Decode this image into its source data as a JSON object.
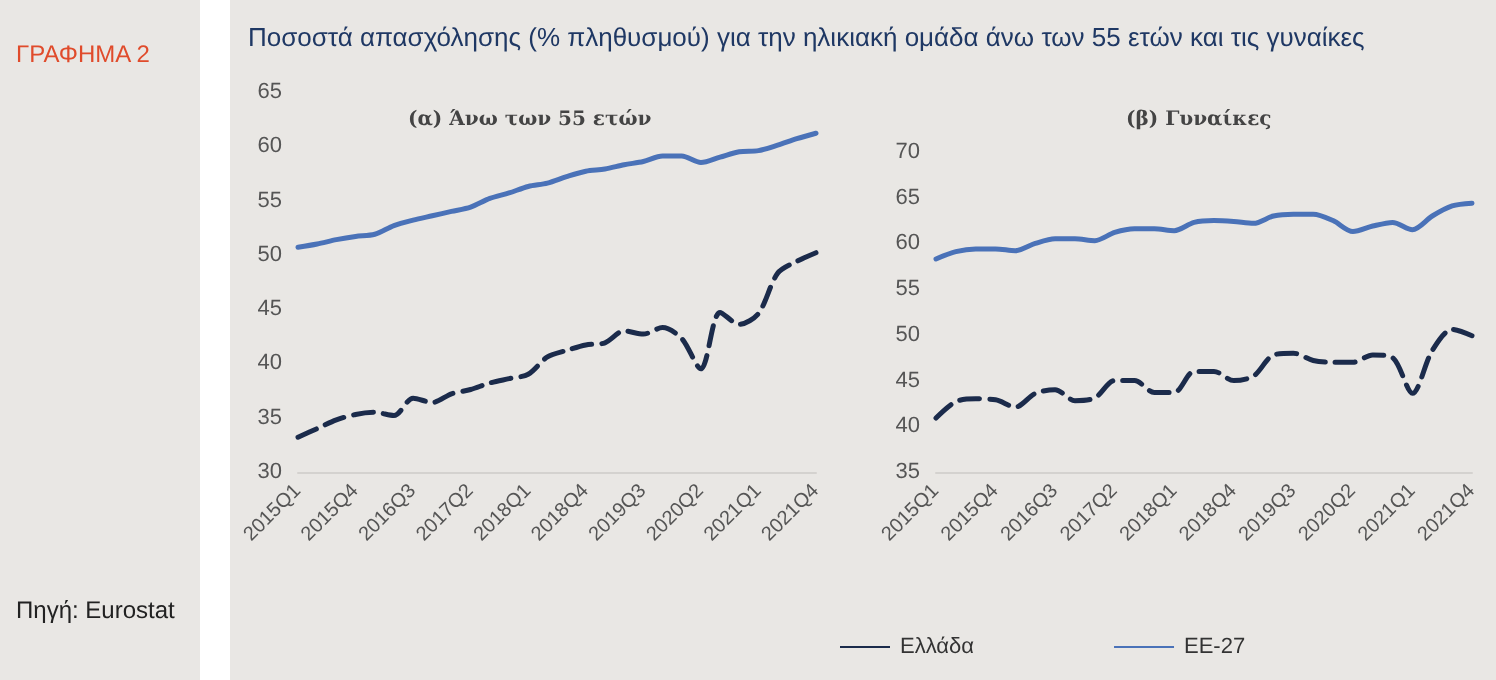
{
  "chart_data": [
    {
      "type": "line",
      "title": "(α) Άνω των 55 ετών",
      "annotations": [
        "Ποσοστά απασχόλησης (% πληθυσμού) για την ηλικιακή ομάδα άνω των 55 ετών και τις γυναίκες",
        "ΓΡΑΦΗΜΑ 2",
        "Πηγή: Eurostat"
      ],
      "categories": [
        "2015Q1",
        null,
        null,
        "2015Q4",
        null,
        null,
        "2016Q3",
        null,
        null,
        "2017Q2",
        null,
        null,
        "2018Q1",
        null,
        null,
        "2018Q4",
        null,
        null,
        "2019Q3",
        null,
        null,
        "2020Q2",
        null,
        null,
        "2021Q1",
        null,
        null,
        "2021Q4"
      ],
      "series": [
        {
          "color": "#1b2b4b",
          "line_style": "dashed",
          "values": [
            33.2,
            34.0,
            34.8,
            35.3,
            35.5,
            35.2,
            36.8,
            36.4,
            37.2,
            37.6,
            38.2,
            38.6,
            39.0,
            40.6,
            41.2,
            41.7,
            41.9,
            43.0,
            42.7,
            43.3,
            42.3,
            39.5,
            44.7,
            43.6,
            44.6,
            48.3,
            49.4,
            50.2
          ]
        },
        {
          "color": "#4a72b8",
          "line_style": "solid",
          "values": [
            50.7,
            51.0,
            51.4,
            51.7,
            51.9,
            52.7,
            53.2,
            53.6,
            54.0,
            54.4,
            55.2,
            55.7,
            56.3,
            56.6,
            57.2,
            57.7,
            57.9,
            58.3,
            58.6,
            59.1,
            59.1,
            58.5,
            59.0,
            59.5,
            59.6,
            60.1,
            60.7,
            61.2
          ]
        }
      ],
      "ylim": [
        30,
        65
      ],
      "yticks": [
        30,
        35,
        40,
        45,
        50,
        55,
        60,
        65
      ],
      "grid": false,
      "legend": false,
      "marker": "none"
    },
    {
      "type": "line",
      "title": "(β) Γυναίκες",
      "categories": [
        "2015Q1",
        null,
        null,
        "2015Q4",
        null,
        null,
        "2016Q3",
        null,
        null,
        "2017Q2",
        null,
        null,
        "2018Q1",
        null,
        null,
        "2018Q4",
        null,
        null,
        "2019Q3",
        null,
        null,
        "2020Q2",
        null,
        null,
        "2021Q1",
        null,
        null,
        "2021Q4"
      ],
      "series": [
        {
          "name": "Ελλάδα",
          "color": "#1b2b4b",
          "line_style": "dashed",
          "values": [
            40.9,
            42.7,
            43.0,
            42.9,
            42.1,
            43.6,
            44.0,
            42.8,
            43.1,
            45.0,
            45.0,
            43.7,
            43.7,
            46.0,
            46.0,
            45.0,
            45.5,
            47.8,
            48.0,
            47.2,
            47.0,
            47.0,
            47.8,
            47.5,
            43.6,
            48.3,
            50.6,
            49.9
          ]
        },
        {
          "name": "ΕΕ-27",
          "color": "#4a72b8",
          "line_style": "solid",
          "values": [
            58.3,
            59.1,
            59.4,
            59.4,
            59.2,
            60.0,
            60.5,
            60.5,
            60.3,
            61.2,
            61.6,
            61.6,
            61.4,
            62.3,
            62.5,
            62.4,
            62.2,
            63.0,
            63.2,
            63.2,
            62.5,
            61.3,
            61.9,
            62.3,
            61.5,
            63.0,
            64.1,
            64.4
          ]
        }
      ],
      "ylim": [
        35,
        70
      ],
      "yticks": [
        35,
        40,
        45,
        50,
        55,
        60,
        65,
        70
      ],
      "grid": false,
      "legend": "bottom",
      "marker": "none"
    }
  ]
}
